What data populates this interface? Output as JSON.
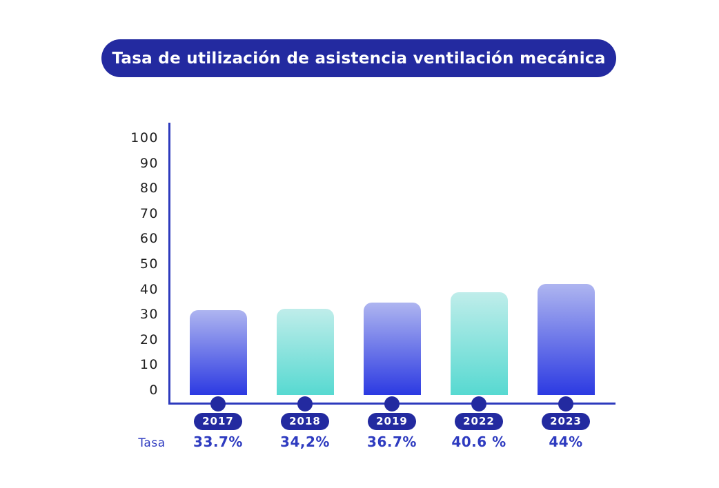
{
  "title_banner": {
    "label": "Tasa de utilización de asistencia ventilación mecánica"
  },
  "row_label": "Tasa",
  "colors": {
    "deep_blue": "#232aa0",
    "axis_blue": "#2d3abd",
    "value_text_blue": "#2e3bc0",
    "tick_text": "#1f1f1f",
    "badge_text": "#ffffff",
    "bar_blue_top": "#aeb5f0",
    "bar_blue_bottom": "#2c3ae2",
    "bar_teal_top": "#bfedea",
    "bar_teal_bottom": "#57d9d1",
    "background": "#ffffff"
  },
  "chart_data": {
    "type": "bar",
    "title": "Tasa de utilización de asistencia ventilación mecánica",
    "categories": [
      "2017",
      "2018",
      "2019",
      "2022",
      "2023"
    ],
    "values": [
      33.7,
      34.2,
      36.7,
      40.6,
      44
    ],
    "value_labels": [
      "33.7%",
      "34,2%",
      "36.7%",
      "40.6 %",
      "44%"
    ],
    "bar_colors": [
      "blue",
      "teal",
      "blue",
      "teal",
      "blue"
    ],
    "row_label": "Tasa",
    "xlabel": "",
    "ylabel": "",
    "ylim": [
      0,
      100
    ],
    "yticks": [
      0,
      10,
      20,
      30,
      40,
      50,
      60,
      70,
      80,
      90,
      100
    ],
    "grid": false,
    "legend_position": "none"
  }
}
